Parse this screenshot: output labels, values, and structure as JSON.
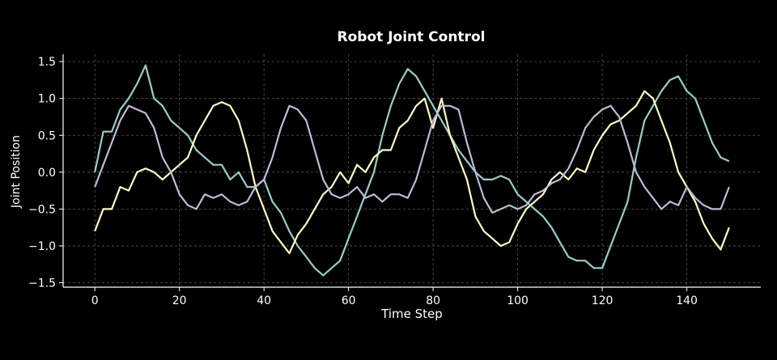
{
  "chart_data": {
    "type": "line",
    "title": "Robot Joint Control",
    "x_label": "Time Step",
    "y_label": "Joint Position",
    "x": [
      0,
      2,
      4,
      6,
      8,
      10,
      12,
      14,
      16,
      18,
      20,
      22,
      24,
      26,
      28,
      30,
      32,
      34,
      36,
      38,
      40,
      42,
      44,
      46,
      48,
      50,
      52,
      54,
      56,
      58,
      60,
      62,
      64,
      66,
      68,
      70,
      72,
      74,
      76,
      78,
      80,
      82,
      84,
      86,
      88,
      90,
      92,
      94,
      96,
      98,
      100,
      102,
      104,
      106,
      108,
      110,
      112,
      114,
      116,
      118,
      120,
      122,
      124,
      126,
      128,
      130,
      132,
      134,
      136,
      138,
      140,
      142,
      144,
      146,
      148,
      150
    ],
    "series": [
      {
        "color": "#8dd3c7",
        "values": [
          0.0,
          0.55,
          0.55,
          0.85,
          1.0,
          1.2,
          1.45,
          1.0,
          0.9,
          0.7,
          0.6,
          0.5,
          0.3,
          0.2,
          0.1,
          0.1,
          -0.1,
          0.0,
          -0.2,
          -0.2,
          -0.1,
          -0.4,
          -0.55,
          -0.8,
          -1.0,
          -1.15,
          -1.3,
          -1.4,
          -1.3,
          -1.2,
          -0.9,
          -0.6,
          -0.3,
          0.0,
          0.5,
          0.9,
          1.2,
          1.4,
          1.3,
          1.1,
          0.9,
          0.7,
          0.5,
          0.3,
          0.15,
          0.0,
          -0.1,
          -0.1,
          -0.05,
          -0.1,
          -0.3,
          -0.4,
          -0.5,
          -0.6,
          -0.75,
          -0.95,
          -1.15,
          -1.2,
          -1.2,
          -1.3,
          -1.3,
          -1.0,
          -0.7,
          -0.4,
          0.2,
          0.7,
          0.9,
          1.1,
          1.25,
          1.3,
          1.1,
          1.0,
          0.7,
          0.4,
          0.2,
          0.15
        ]
      },
      {
        "color": "#ffffb3",
        "values": [
          -0.8,
          -0.5,
          -0.5,
          -0.2,
          -0.25,
          0.0,
          0.05,
          0.0,
          -0.1,
          0.0,
          0.1,
          0.2,
          0.5,
          0.7,
          0.9,
          0.95,
          0.9,
          0.7,
          0.3,
          -0.2,
          -0.5,
          -0.8,
          -0.95,
          -1.1,
          -0.85,
          -0.7,
          -0.5,
          -0.3,
          -0.2,
          0.0,
          -0.15,
          0.1,
          0.0,
          0.2,
          0.3,
          0.3,
          0.6,
          0.7,
          0.9,
          1.0,
          0.6,
          1.0,
          0.5,
          0.2,
          -0.1,
          -0.6,
          -0.8,
          -0.9,
          -1.0,
          -0.95,
          -0.7,
          -0.5,
          -0.4,
          -0.3,
          -0.1,
          0.0,
          -0.1,
          0.05,
          0.0,
          0.3,
          0.5,
          0.65,
          0.7,
          0.8,
          0.9,
          1.1,
          1.0,
          0.7,
          0.4,
          0.0,
          -0.2,
          -0.4,
          -0.7,
          -0.9,
          -1.05,
          -0.75
        ]
      },
      {
        "color": "#bebada",
        "values": [
          -0.2,
          0.1,
          0.4,
          0.7,
          0.9,
          0.85,
          0.8,
          0.6,
          0.2,
          0.0,
          -0.3,
          -0.45,
          -0.5,
          -0.3,
          -0.35,
          -0.3,
          -0.4,
          -0.45,
          -0.4,
          -0.2,
          -0.1,
          0.2,
          0.6,
          0.9,
          0.85,
          0.7,
          0.3,
          -0.1,
          -0.3,
          -0.35,
          -0.3,
          -0.2,
          -0.35,
          -0.3,
          -0.4,
          -0.3,
          -0.3,
          -0.35,
          -0.1,
          0.3,
          0.7,
          0.9,
          0.9,
          0.85,
          0.4,
          0.0,
          -0.35,
          -0.55,
          -0.5,
          -0.45,
          -0.5,
          -0.45,
          -0.3,
          -0.25,
          -0.15,
          -0.1,
          0.05,
          0.3,
          0.6,
          0.75,
          0.85,
          0.9,
          0.75,
          0.4,
          0.0,
          -0.2,
          -0.35,
          -0.5,
          -0.4,
          -0.45,
          -0.2,
          -0.35,
          -0.45,
          -0.5,
          -0.5,
          -0.2
        ]
      }
    ],
    "xlim": [
      -7.5,
      157.5
    ],
    "ylim": [
      -1.56,
      1.6
    ],
    "xticks": [
      0,
      20,
      40,
      60,
      80,
      100,
      120,
      140
    ],
    "yticks": [
      {
        "value": -1.5,
        "label": "−1.5"
      },
      {
        "value": -1.0,
        "label": "−1.0"
      },
      {
        "value": -0.5,
        "label": "−0.5"
      },
      {
        "value": 0.0,
        "label": "0.0"
      },
      0.5,
      {
        "value": 1.0,
        "label": "1.0"
      },
      1.5
    ],
    "grid": true
  }
}
